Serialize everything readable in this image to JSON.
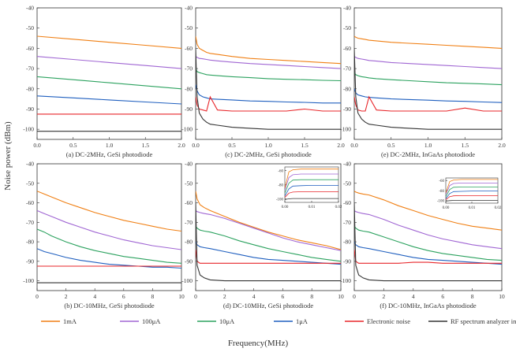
{
  "figure": {
    "ylabel": "Noise power (dBm)",
    "xlabel": "Frequency(MHz)"
  },
  "legend": [
    {
      "label": "1mA",
      "color": "#f07f13"
    },
    {
      "label": "100μA",
      "color": "#a066d3"
    },
    {
      "label": "10μA",
      "color": "#2ca25f"
    },
    {
      "label": "1μA",
      "color": "#1f5fbf"
    },
    {
      "label": "Electronic noise",
      "color": "#e8262a"
    },
    {
      "label": "RF spectrum analyzer internal noise",
      "color": "#333333"
    }
  ],
  "chart_data": [
    {
      "id": "a",
      "type": "line",
      "title": "(a) DC-2MHz, GeSi photodiode",
      "xlim": [
        0,
        2.0
      ],
      "ylim": [
        -105,
        -40
      ],
      "xticks": [
        "0.0",
        "0.5",
        "1.0",
        "1.5",
        "2.0"
      ],
      "yticks": [
        "-40",
        "-50",
        "-60",
        "-70",
        "-80",
        "-90",
        "-100"
      ],
      "x": [
        0,
        0.5,
        1.0,
        1.5,
        2.0
      ],
      "series": [
        {
          "name": "1mA",
          "values": [
            -54,
            -55.5,
            -57,
            -58.5,
            -60
          ]
        },
        {
          "name": "100μA",
          "values": [
            -64,
            -65.5,
            -67,
            -68.5,
            -70
          ]
        },
        {
          "name": "10μA",
          "values": [
            -74,
            -75.5,
            -77,
            -78.5,
            -80
          ]
        },
        {
          "name": "1μA",
          "values": [
            -83.5,
            -84.5,
            -85.5,
            -86.5,
            -87.5
          ]
        },
        {
          "name": "Electronic noise",
          "values": [
            -92.5,
            -92.5,
            -92.5,
            -92.5,
            -92.5
          ]
        },
        {
          "name": "RF spectrum analyzer internal noise",
          "values": [
            -101,
            -101,
            -101,
            -101,
            -101
          ]
        }
      ]
    },
    {
      "id": "c",
      "type": "line",
      "title": "(c) DC-2MHz, GeSi photodiode",
      "xlim": [
        0,
        2.0
      ],
      "ylim": [
        -105,
        -40
      ],
      "xticks": [
        "0.0",
        "0.5",
        "1.0",
        "1.5",
        "2.0"
      ],
      "yticks": [
        "-40",
        "-50",
        "-60",
        "-70",
        "-80",
        "-90",
        "-100"
      ],
      "x": [
        0.0,
        0.02,
        0.05,
        0.1,
        0.15,
        0.2,
        0.3,
        0.5,
        0.75,
        1.0,
        1.25,
        1.5,
        1.75,
        2.0
      ],
      "series": [
        {
          "name": "1mA",
          "values": [
            -54,
            -58,
            -60,
            -61,
            -62,
            -62.5,
            -63,
            -64,
            -65,
            -65.5,
            -66,
            -66.5,
            -67,
            -67.5
          ]
        },
        {
          "name": "100μA",
          "values": [
            -64,
            -64.5,
            -65,
            -65.2,
            -65.5,
            -65.8,
            -66.2,
            -66.8,
            -67.5,
            -68,
            -68.5,
            -69,
            -69.5,
            -70
          ]
        },
        {
          "name": "10μA",
          "values": [
            -70,
            -71.5,
            -72,
            -72.5,
            -73,
            -73.2,
            -73.5,
            -74,
            -74.5,
            -75,
            -75.3,
            -75.5,
            -75.8,
            -76
          ]
        },
        {
          "name": "1μA",
          "values": [
            -78,
            -81,
            -83,
            -84,
            -84.5,
            -85,
            -85.2,
            -85.5,
            -86,
            -86.2,
            -86.5,
            -86.7,
            -87,
            -87
          ]
        },
        {
          "name": "Electronic noise",
          "values": [
            -84,
            -88,
            -90,
            -90.5,
            -91,
            -84,
            -90.5,
            -91,
            -91,
            -91,
            -91,
            -90,
            -91,
            -91
          ]
        },
        {
          "name": "RF spectrum analyzer internal noise",
          "values": [
            -60,
            -84,
            -92,
            -95,
            -96.5,
            -97.5,
            -98,
            -99,
            -99.5,
            -100,
            -100,
            -100,
            -100,
            -100
          ]
        }
      ]
    },
    {
      "id": "e",
      "type": "line",
      "title": "(e) DC-2MHz, InGaAs photodiode",
      "xlim": [
        0,
        2.0
      ],
      "ylim": [
        -105,
        -40
      ],
      "xticks": [
        "0.0",
        "0.5",
        "1.0",
        "1.5",
        "2.0"
      ],
      "yticks": [
        "-40",
        "-50",
        "-60",
        "-70",
        "-80",
        "-90",
        "-100"
      ],
      "x": [
        0.0,
        0.02,
        0.05,
        0.1,
        0.15,
        0.2,
        0.3,
        0.5,
        0.75,
        1.0,
        1.25,
        1.5,
        1.75,
        2.0
      ],
      "series": [
        {
          "name": "1mA",
          "values": [
            -54,
            -54.5,
            -55,
            -55.3,
            -55.6,
            -56,
            -56.3,
            -57,
            -57.5,
            -58,
            -58.5,
            -59,
            -59.5,
            -60
          ]
        },
        {
          "name": "100μA",
          "values": [
            -64,
            -64.5,
            -65,
            -65.3,
            -65.6,
            -66,
            -66.3,
            -67,
            -67.5,
            -68,
            -68.5,
            -69,
            -69.5,
            -70
          ]
        },
        {
          "name": "10μA",
          "values": [
            -72,
            -73,
            -73.5,
            -74,
            -74.3,
            -74.6,
            -75,
            -75.5,
            -76,
            -76.5,
            -77,
            -77.3,
            -77.6,
            -78
          ]
        },
        {
          "name": "1μA",
          "values": [
            -80,
            -82,
            -83,
            -83.5,
            -84,
            -84.2,
            -84.5,
            -85,
            -85.3,
            -85.6,
            -86,
            -86.2,
            -86.5,
            -86.8
          ]
        },
        {
          "name": "Electronic noise",
          "values": [
            -84,
            -88,
            -90.5,
            -91,
            -91,
            -84,
            -90.5,
            -91,
            -91,
            -91,
            -91,
            -89.5,
            -91,
            -91
          ]
        },
        {
          "name": "RF spectrum analyzer internal noise",
          "values": [
            -60,
            -84,
            -92,
            -95,
            -96.5,
            -97.5,
            -98,
            -99,
            -99.5,
            -100,
            -100,
            -100,
            -100,
            -100
          ]
        }
      ]
    },
    {
      "id": "b",
      "type": "line",
      "title": "(b) DC-10MHz, GeSi photodiode",
      "xlim": [
        0,
        10
      ],
      "ylim": [
        -105,
        -40
      ],
      "xticks": [
        "0",
        "2",
        "4",
        "6",
        "8",
        "10"
      ],
      "yticks": [
        "-40",
        "-50",
        "-60",
        "-70",
        "-80",
        "-90",
        "-100"
      ],
      "x": [
        0,
        0.5,
        1,
        2,
        3,
        4,
        5,
        6,
        7,
        8,
        9,
        10
      ],
      "series": [
        {
          "name": "1mA",
          "values": [
            -54,
            -55.5,
            -57,
            -60,
            -62.5,
            -65,
            -67,
            -69,
            -70.5,
            -72,
            -73.5,
            -74.5
          ]
        },
        {
          "name": "100μA",
          "values": [
            -64,
            -65.5,
            -67,
            -70,
            -72.5,
            -75,
            -77,
            -79,
            -80.5,
            -82,
            -83,
            -84
          ]
        },
        {
          "name": "10μA",
          "values": [
            -73.5,
            -75,
            -77,
            -80,
            -82.5,
            -84.5,
            -86,
            -87.5,
            -88.5,
            -89.5,
            -90.5,
            -91
          ]
        },
        {
          "name": "1μA",
          "values": [
            -83.5,
            -85,
            -86,
            -88,
            -89.5,
            -90.5,
            -91.5,
            -92,
            -92.5,
            -93,
            -93,
            -93.5
          ]
        },
        {
          "name": "Electronic noise",
          "values": [
            -92.5,
            -92.5,
            -92.5,
            -92.5,
            -92.5,
            -92.5,
            -92.5,
            -92.5,
            -92.5,
            -92.5,
            -92.5,
            -92.5
          ]
        },
        {
          "name": "RF spectrum analyzer internal noise",
          "values": [
            -101,
            -101,
            -101,
            -101,
            -101,
            -101,
            -101,
            -101,
            -101,
            -101,
            -101,
            -101
          ]
        }
      ]
    },
    {
      "id": "d",
      "type": "line",
      "title": "(d) DC-10MHz, GeSi photodiode",
      "xlim": [
        0,
        10
      ],
      "ylim": [
        -105,
        -40
      ],
      "xticks": [
        "0",
        "2",
        "4",
        "6",
        "8",
        "10"
      ],
      "yticks": [
        "-40",
        "-50",
        "-60",
        "-70",
        "-80",
        "-90",
        "-100"
      ],
      "x": [
        0,
        0.1,
        0.3,
        0.6,
        1,
        2,
        3,
        4,
        5,
        6,
        7,
        8,
        9,
        10
      ],
      "series": [
        {
          "name": "1mA",
          "values": [
            -54,
            -58,
            -61,
            -62.5,
            -64,
            -67,
            -70,
            -72.5,
            -75,
            -77,
            -79,
            -80.5,
            -82,
            -84
          ]
        },
        {
          "name": "100μA",
          "values": [
            -64,
            -64.5,
            -65,
            -65.5,
            -66,
            -68,
            -70.5,
            -73,
            -75.5,
            -78,
            -80,
            -81.5,
            -83,
            -84.5
          ]
        },
        {
          "name": "10μA",
          "values": [
            -72,
            -73,
            -74,
            -74.5,
            -75,
            -77,
            -79.5,
            -81.5,
            -83.5,
            -85,
            -86.5,
            -88,
            -89,
            -90
          ]
        },
        {
          "name": "1μA",
          "values": [
            -80,
            -81.5,
            -82.5,
            -83,
            -83.5,
            -85,
            -86.5,
            -88,
            -89,
            -89.5,
            -90,
            -90.5,
            -91,
            -91.5
          ]
        },
        {
          "name": "Electronic noise",
          "values": [
            -84,
            -90,
            -91,
            -91,
            -91,
            -91,
            -91,
            -91,
            -91,
            -91,
            -91,
            -91,
            -91,
            -91
          ]
        },
        {
          "name": "RF spectrum analyzer internal noise",
          "values": [
            -60,
            -92,
            -97,
            -98.5,
            -99.5,
            -100,
            -100,
            -100,
            -100,
            -100,
            -100,
            -100,
            -100,
            -100
          ]
        }
      ],
      "inset": {
        "xlim": [
          0,
          0.02
        ],
        "ylim": [
          -105,
          -55
        ],
        "xticks": [
          "0.00",
          "0.01",
          "0.02"
        ],
        "yticks": [
          "-60",
          "-80",
          "-100"
        ],
        "x": [
          0,
          0.0015,
          0.003,
          0.006,
          0.01,
          0.015,
          0.02
        ],
        "series": [
          {
            "name": "1mA",
            "values": [
              -85,
              -62,
              -59,
              -58,
              -58,
              -58,
              -58
            ]
          },
          {
            "name": "100μA",
            "values": [
              -88,
              -70,
              -66,
              -65,
              -65,
              -65,
              -65
            ]
          },
          {
            "name": "10μA",
            "values": [
              -92,
              -78,
              -73.5,
              -73,
              -73,
              -73,
              -73
            ]
          },
          {
            "name": "1μA",
            "values": [
              -96,
              -86,
              -82,
              -81.5,
              -81,
              -81,
              -81
            ]
          },
          {
            "name": "Electronic noise",
            "values": [
              -98,
              -92,
              -90.5,
              -90,
              -90,
              -90,
              -90
            ]
          },
          {
            "name": "RF spectrum analyzer internal noise",
            "values": [
              -101,
              -100,
              -99.5,
              -99.5,
              -99.5,
              -99.5,
              -99.5
            ]
          }
        ]
      }
    },
    {
      "id": "f",
      "type": "line",
      "title": "(f) DC-10MHz, InGaAs photodiode",
      "xlim": [
        0,
        10
      ],
      "ylim": [
        -105,
        -40
      ],
      "xticks": [
        "0",
        "2",
        "4",
        "6",
        "8",
        "10"
      ],
      "yticks": [
        "-40",
        "-50",
        "-60",
        "-70",
        "-80",
        "-90",
        "-100"
      ],
      "x": [
        0,
        0.1,
        0.3,
        0.6,
        1,
        2,
        3,
        4,
        5,
        6,
        7,
        8,
        9,
        10
      ],
      "series": [
        {
          "name": "1mA",
          "values": [
            -54,
            -54.5,
            -55,
            -55.5,
            -56,
            -58.5,
            -61.5,
            -64,
            -66.5,
            -68.5,
            -70.5,
            -72,
            -73,
            -74
          ]
        },
        {
          "name": "100μA",
          "values": [
            -64,
            -64.5,
            -65,
            -65.5,
            -66,
            -68.5,
            -71.5,
            -74,
            -76.5,
            -78.5,
            -80,
            -81.5,
            -82.5,
            -83.5
          ]
        },
        {
          "name": "10μA",
          "values": [
            -72,
            -73,
            -74,
            -74.5,
            -75,
            -77.5,
            -80,
            -82.5,
            -84.5,
            -86,
            -87,
            -88,
            -89,
            -89.5
          ]
        },
        {
          "name": "1μA",
          "values": [
            -80,
            -81.5,
            -82.5,
            -83,
            -83.5,
            -85,
            -86.5,
            -88,
            -89,
            -89.5,
            -90,
            -90.5,
            -91,
            -91.5
          ]
        },
        {
          "name": "Electronic noise",
          "values": [
            -84,
            -90,
            -91,
            -91,
            -91,
            -91,
            -91,
            -90.5,
            -90.5,
            -91,
            -91,
            -91,
            -91,
            -91
          ]
        },
        {
          "name": "RF spectrum analyzer internal noise",
          "values": [
            -60,
            -92,
            -97,
            -98.5,
            -99.5,
            -100,
            -100,
            -100,
            -100,
            -100,
            -100,
            -100,
            -100,
            -100
          ]
        }
      ],
      "inset": {
        "xlim": [
          0,
          0.02
        ],
        "ylim": [
          -105,
          -55
        ],
        "xticks": [
          "0.00",
          "0.01",
          "0.02"
        ],
        "yticks": [
          "-60",
          "-80",
          "-100"
        ],
        "x": [
          0,
          0.0015,
          0.003,
          0.006,
          0.01,
          0.015,
          0.02
        ],
        "series": [
          {
            "name": "1mA",
            "values": [
              -85,
              -62,
              -59,
              -58,
              -58,
              -58,
              -58
            ]
          },
          {
            "name": "100μA",
            "values": [
              -88,
              -70,
              -66,
              -65,
              -65,
              -65,
              -65
            ]
          },
          {
            "name": "10μA",
            "values": [
              -92,
              -78,
              -73.5,
              -73,
              -73,
              -73,
              -73
            ]
          },
          {
            "name": "1μA",
            "values": [
              -96,
              -86,
              -82,
              -81.5,
              -81,
              -81,
              -81
            ]
          },
          {
            "name": "Electronic noise",
            "values": [
              -98,
              -92,
              -90.5,
              -90,
              -90,
              -90,
              -90
            ]
          },
          {
            "name": "RF spectrum analyzer internal noise",
            "values": [
              -101,
              -100,
              -99.5,
              -99.5,
              -99.5,
              -99.5,
              -99.5
            ]
          }
        ]
      }
    }
  ]
}
